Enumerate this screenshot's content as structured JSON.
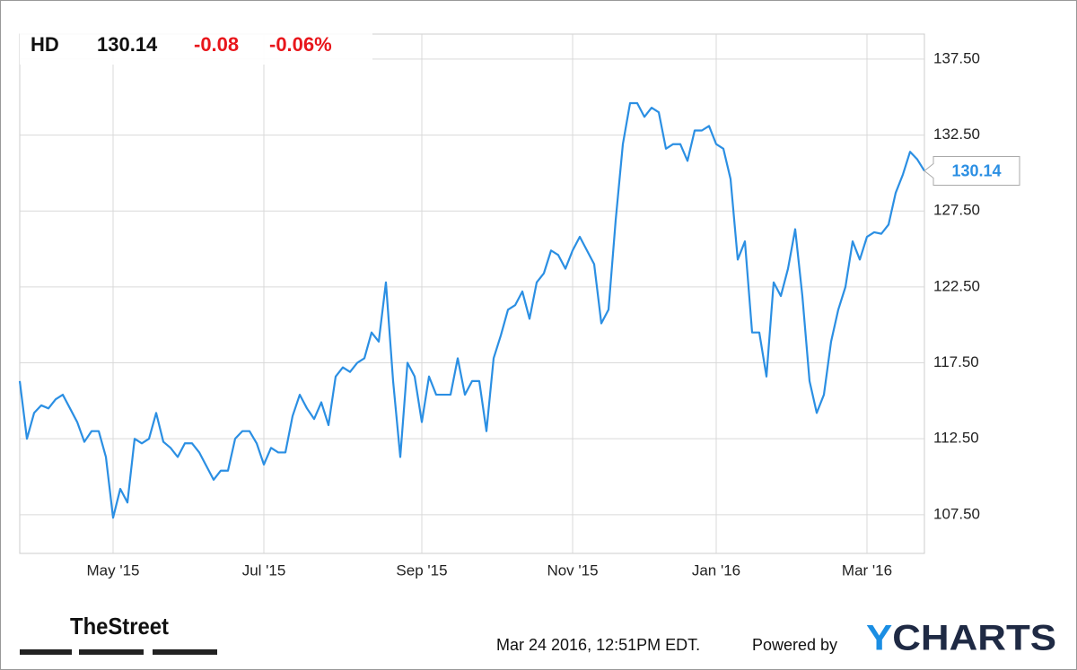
{
  "chart_data": {
    "type": "line",
    "quote": {
      "symbol": "HD",
      "price": "130.14",
      "change": "-0.08",
      "change_percent": "-0.06%"
    },
    "categories": [
      null,
      null,
      null,
      null,
      null,
      null,
      null,
      null,
      null,
      null,
      null,
      null,
      null,
      "May '15",
      null,
      null,
      null,
      null,
      null,
      null,
      null,
      null,
      null,
      null,
      null,
      null,
      null,
      null,
      null,
      null,
      null,
      null,
      null,
      null,
      "Jul '15",
      null,
      null,
      null,
      null,
      null,
      null,
      null,
      null,
      null,
      null,
      null,
      null,
      null,
      null,
      null,
      null,
      null,
      null,
      null,
      null,
      null,
      "Sep '15",
      null,
      null,
      null,
      null,
      null,
      null,
      null,
      null,
      null,
      null,
      null,
      null,
      null,
      null,
      null,
      null,
      null,
      null,
      null,
      null,
      "Nov '15",
      null,
      null,
      null,
      null,
      null,
      null,
      null,
      null,
      null,
      null,
      null,
      null,
      null,
      null,
      null,
      null,
      null,
      null,
      null,
      "Jan '16",
      null,
      null,
      null,
      null,
      null,
      null,
      null,
      null,
      null,
      null,
      null,
      null,
      null,
      null,
      null,
      null,
      null,
      null,
      null,
      null,
      "Mar '16",
      null,
      null,
      null,
      null,
      null,
      null,
      null,
      null
    ],
    "series": [
      {
        "name": "HD",
        "color": "#2b8fe3",
        "values": [
          116.3,
          112.5,
          114.2,
          114.7,
          114.5,
          115.1,
          115.4,
          114.5,
          113.6,
          112.3,
          113.0,
          113.0,
          111.3,
          107.3,
          109.2,
          108.3,
          112.5,
          112.2,
          112.5,
          114.2,
          112.3,
          111.9,
          111.3,
          112.2,
          112.2,
          111.6,
          110.7,
          109.8,
          110.4,
          110.4,
          112.5,
          113.0,
          113.0,
          112.2,
          110.8,
          111.9,
          111.6,
          111.6,
          114.0,
          115.4,
          114.5,
          113.8,
          114.9,
          113.4,
          116.6,
          117.2,
          116.9,
          117.5,
          117.8,
          119.5,
          118.9,
          122.8,
          116.3,
          111.3,
          117.5,
          116.6,
          113.6,
          116.6,
          115.4,
          115.4,
          115.4,
          117.8,
          115.4,
          116.3,
          116.3,
          113.0,
          117.8,
          119.3,
          121.0,
          121.3,
          122.2,
          120.4,
          122.8,
          123.4,
          124.9,
          124.6,
          123.7,
          124.9,
          125.8,
          124.9,
          124.0,
          120.1,
          121.0,
          126.9,
          131.9,
          134.6,
          134.6,
          133.7,
          134.3,
          134.0,
          131.6,
          131.9,
          131.9,
          130.8,
          132.8,
          132.8,
          133.1,
          131.9,
          131.6,
          129.6,
          124.3,
          125.5,
          119.5,
          119.5,
          116.6,
          122.8,
          121.9,
          123.7,
          126.3,
          121.9,
          116.3,
          114.2,
          115.4,
          118.9,
          121.0,
          122.5,
          125.5,
          124.3,
          125.8,
          126.1,
          126.0,
          126.6,
          128.7,
          129.9,
          131.4,
          130.9,
          130.14
        ]
      }
    ],
    "ylim": [
      104.95,
      139.15
    ],
    "yticks": [
      {
        "value": 107.5,
        "label": "107.50"
      },
      {
        "value": 112.5,
        "label": "112.50"
      },
      {
        "value": 117.5,
        "label": "117.50"
      },
      {
        "value": 122.5,
        "label": "122.50"
      },
      {
        "value": 127.5,
        "label": "127.50"
      },
      {
        "value": 132.5,
        "label": "132.50"
      },
      {
        "value": 137.5,
        "label": "137.50"
      }
    ],
    "grid": true,
    "up_color": "#2b8fe3",
    "down_color": "#e8161b",
    "footer": {
      "publisher": "TheStreet",
      "timestamp": "Mar 24 2016, 12:51PM EDT.",
      "powered_by": "Powered by",
      "brand": "YCHARTS"
    }
  }
}
